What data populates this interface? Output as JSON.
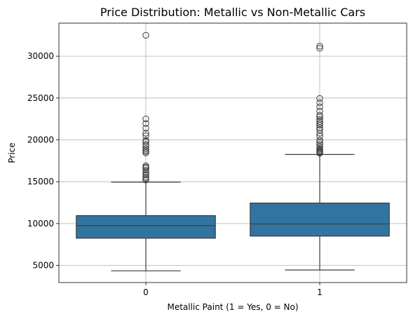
{
  "chart_data": {
    "type": "box",
    "title": "Price Distribution: Metallic vs Non-Metallic Cars",
    "xlabel": "Metallic Paint (1 = Yes, 0 = No)",
    "ylabel": "Price",
    "ylim": [
      2950,
      33950
    ],
    "grid": true,
    "yticks": [
      5000,
      10000,
      15000,
      20000,
      25000,
      30000
    ],
    "categories": [
      "0",
      "1"
    ],
    "box_color": "#3274a1",
    "line_color": "#3d3d3d",
    "boxes": [
      {
        "category": "0",
        "whisker_low": 4350,
        "q1": 8250,
        "median": 9750,
        "q3": 10950,
        "whisker_high": 14950,
        "outliers": [
          15200,
          15400,
          15550,
          15800,
          15950,
          16200,
          16400,
          16650,
          16750,
          16900,
          18450,
          18600,
          18750,
          18950,
          19250,
          19450,
          19750,
          19950,
          20500,
          20800,
          21400,
          21950,
          22500,
          32500
        ]
      },
      {
        "category": "1",
        "whisker_low": 4450,
        "q1": 8500,
        "median": 9950,
        "q3": 12450,
        "whisker_high": 18250,
        "outliers": [
          18400,
          18500,
          18600,
          18700,
          18850,
          18950,
          19200,
          19450,
          19700,
          19950,
          20450,
          20800,
          21200,
          21450,
          21750,
          21950,
          22200,
          22450,
          22750,
          22950,
          23450,
          23950,
          24450,
          24950,
          30950,
          31200
        ]
      }
    ]
  }
}
